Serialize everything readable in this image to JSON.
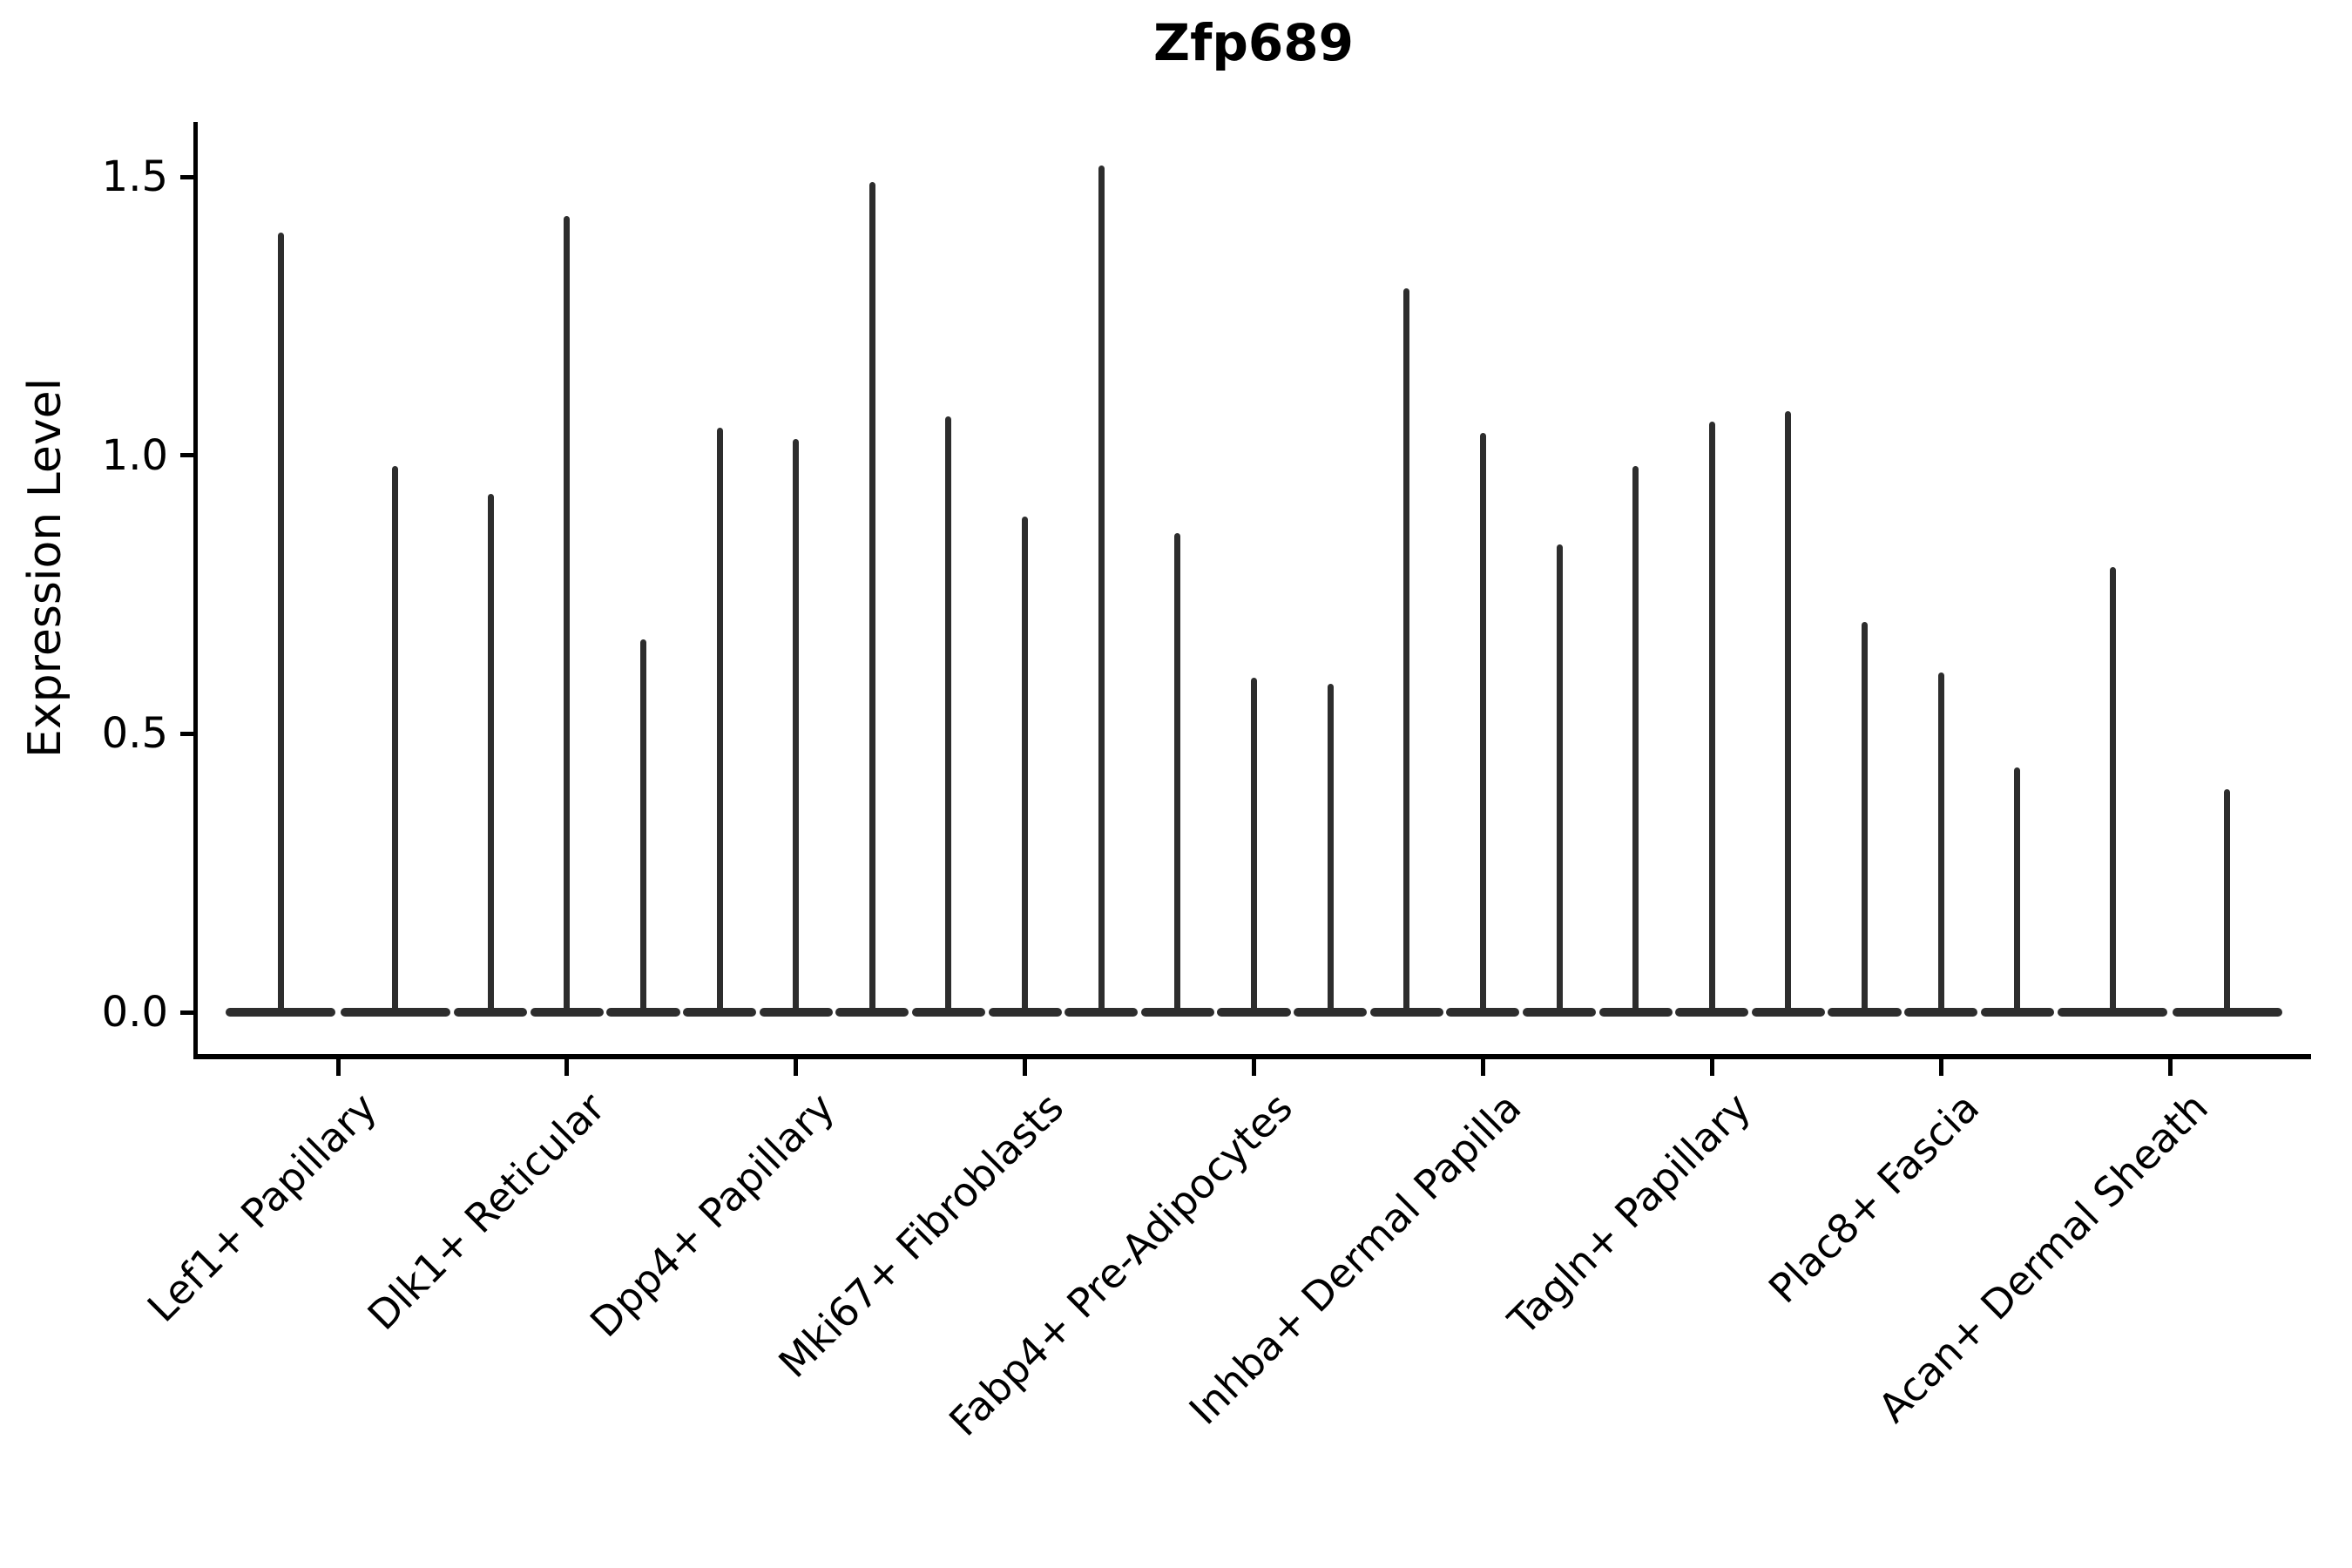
{
  "title": "Zfp689",
  "y_axis": {
    "label": "Expression Level",
    "tick_labels": [
      "0.0",
      "0.5",
      "1.0",
      "1.5"
    ],
    "tick_values": [
      0,
      0.5,
      1.0,
      1.5
    ]
  },
  "colors": {
    "violin": "#2d2d2d",
    "axis": "#000000",
    "background": "#ffffff"
  },
  "chart_data": {
    "type": "violin",
    "title": "Zfp689",
    "xlabel": "",
    "ylabel": "Expression Level",
    "ylim": [
      -0.08,
      1.6
    ],
    "yticks": [
      0,
      0.5,
      1.0,
      1.5
    ],
    "grid": false,
    "legend": "none",
    "note": "Narrow spike-shaped violins with flat bases at 0; values are the top (maximum expression) of each violin spike",
    "categories": [
      "Lef1+ Papillary",
      "Dlk1+ Reticular",
      "Dpp4+ Papillary",
      "Mki67+ Fibroblasts",
      "Fabp4+ Pre-Adipocytes",
      "Inhba+ Dermal Papilla",
      "Tagln+ Papillary",
      "Plac8+ Fascia",
      "Acan+ Dermal Sheath"
    ],
    "groups": [
      {
        "category": "Lef1+ Papillary",
        "violin_maxima": [
          1.4,
          0.98
        ]
      },
      {
        "category": "Dlk1+ Reticular",
        "violin_maxima": [
          0.93,
          1.43,
          0.67
        ]
      },
      {
        "category": "Dpp4+ Papillary",
        "violin_maxima": [
          1.05,
          1.03,
          1.49
        ]
      },
      {
        "category": "Mki67+ Fibroblasts",
        "violin_maxima": [
          1.07,
          0.89,
          1.52
        ]
      },
      {
        "category": "Fabp4+ Pre-Adipocytes",
        "violin_maxima": [
          0.86,
          0.6,
          0.59
        ]
      },
      {
        "category": "Inhba+ Dermal Papilla",
        "violin_maxima": [
          1.3,
          1.04,
          0.84
        ]
      },
      {
        "category": "Tagln+ Papillary",
        "violin_maxima": [
          0.98,
          1.06,
          1.08
        ]
      },
      {
        "category": "Plac8+ Fascia",
        "violin_maxima": [
          0.7,
          0.61,
          0.44
        ]
      },
      {
        "category": "Acan+ Dermal Sheath",
        "violin_maxima": [
          0.8,
          0.4
        ]
      }
    ]
  }
}
